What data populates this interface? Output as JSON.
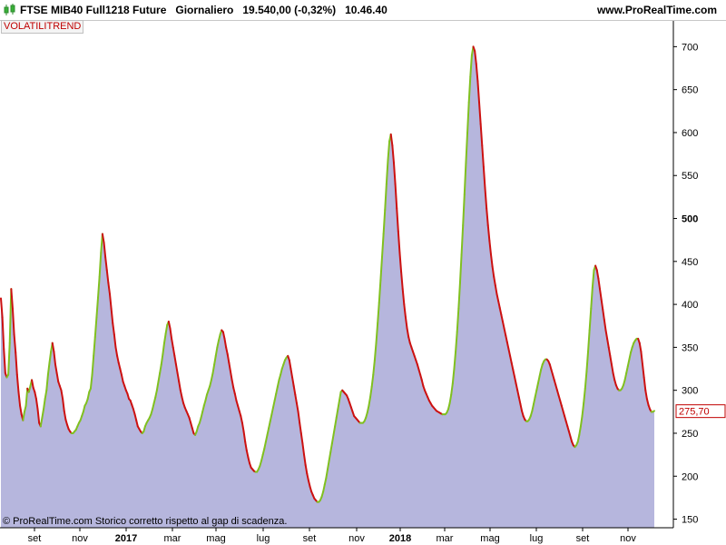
{
  "header": {
    "title": "FTSE MIB40 Full1218 Future   Giornaliero   19.540,00 (-0,32%)   10.46.40",
    "site": "www.ProRealTime.com"
  },
  "indicator_label": "VOLATILITREND",
  "copyright": "© ProRealTime.com  Storico corretto rispetto al gap di scadenza.",
  "last_value_label": "275,70",
  "colors": {
    "fill": "#b6b6dd",
    "up": "#80c020",
    "down": "#cc1111",
    "axis": "#000000",
    "last_value": "#c00000"
  },
  "chart_data": {
    "type": "area",
    "title": "",
    "ylim": [
      140,
      730
    ],
    "y_ticks": [
      150,
      200,
      250,
      300,
      350,
      400,
      450,
      500,
      550,
      600,
      650,
      700
    ],
    "y_tick_labels": [
      "150",
      "200",
      "250",
      "300",
      "350",
      "400",
      "450",
      "500",
      "550",
      "600",
      "650",
      "700"
    ],
    "x_labels": [
      "set",
      "nov",
      "2017",
      "mar",
      "mag",
      "lug",
      "set",
      "nov",
      "2018",
      "mar",
      "mag",
      "lug",
      "set",
      "nov"
    ],
    "bold_x_labels": [
      "2017",
      "2018"
    ],
    "bold_y_labels": [
      "500"
    ],
    "last_value": 275.7,
    "values": [
      407,
      385,
      348,
      320,
      315,
      318,
      355,
      418,
      395,
      365,
      344,
      318,
      298,
      282,
      272,
      265,
      275,
      282,
      302,
      298,
      305,
      312,
      303,
      298,
      290,
      278,
      262,
      258,
      268,
      278,
      290,
      300,
      318,
      332,
      345,
      355,
      345,
      330,
      320,
      310,
      305,
      300,
      290,
      276,
      266,
      260,
      255,
      252,
      250,
      250,
      252,
      254,
      258,
      262,
      265,
      270,
      275,
      282,
      285,
      290,
      298,
      302,
      318,
      340,
      362,
      385,
      408,
      432,
      460,
      482,
      472,
      455,
      440,
      425,
      412,
      395,
      378,
      365,
      350,
      340,
      332,
      325,
      318,
      310,
      305,
      300,
      296,
      290,
      288,
      283,
      278,
      272,
      265,
      258,
      255,
      252,
      250,
      252,
      258,
      262,
      265,
      268,
      272,
      278,
      285,
      292,
      300,
      310,
      320,
      330,
      342,
      355,
      366,
      376,
      380,
      372,
      360,
      350,
      340,
      330,
      320,
      310,
      300,
      292,
      285,
      280,
      276,
      272,
      268,
      262,
      256,
      250,
      248,
      252,
      258,
      262,
      268,
      275,
      282,
      288,
      295,
      300,
      305,
      312,
      320,
      330,
      340,
      350,
      358,
      365,
      370,
      368,
      360,
      350,
      342,
      332,
      322,
      312,
      303,
      296,
      288,
      282,
      276,
      270,
      262,
      252,
      240,
      230,
      222,
      215,
      210,
      208,
      206,
      205,
      205,
      208,
      212,
      218,
      225,
      232,
      240,
      248,
      256,
      264,
      272,
      280,
      288,
      296,
      304,
      312,
      318,
      325,
      330,
      335,
      338,
      340,
      335,
      325,
      315,
      305,
      295,
      285,
      275,
      262,
      250,
      238,
      225,
      213,
      203,
      195,
      188,
      182,
      178,
      174,
      172,
      170,
      170,
      172,
      176,
      182,
      190,
      198,
      208,
      218,
      228,
      238,
      248,
      258,
      268,
      278,
      288,
      298,
      300,
      298,
      296,
      294,
      290,
      285,
      280,
      275,
      270,
      268,
      266,
      264,
      262,
      262,
      262,
      264,
      268,
      274,
      282,
      292,
      304,
      318,
      335,
      355,
      378,
      402,
      428,
      455,
      482,
      510,
      540,
      568,
      590,
      598,
      585,
      565,
      540,
      512,
      485,
      460,
      438,
      418,
      400,
      385,
      372,
      362,
      355,
      350,
      345,
      340,
      335,
      330,
      324,
      318,
      312,
      305,
      300,
      296,
      292,
      288,
      285,
      282,
      280,
      278,
      276,
      275,
      274,
      273,
      272,
      272,
      272,
      274,
      278,
      285,
      295,
      308,
      325,
      345,
      368,
      395,
      425,
      458,
      492,
      528,
      565,
      600,
      635,
      665,
      690,
      700,
      695,
      680,
      660,
      635,
      610,
      585,
      560,
      535,
      512,
      492,
      474,
      458,
      444,
      432,
      422,
      412,
      404,
      396,
      388,
      380,
      372,
      364,
      356,
      348,
      340,
      332,
      324,
      316,
      308,
      300,
      292,
      284,
      276,
      270,
      266,
      264,
      264,
      266,
      270,
      276,
      284,
      292,
      300,
      308,
      316,
      324,
      330,
      334,
      336,
      336,
      334,
      330,
      324,
      318,
      312,
      306,
      300,
      294,
      288,
      282,
      276,
      270,
      264,
      258,
      252,
      246,
      240,
      236,
      234,
      236,
      240,
      248,
      258,
      270,
      285,
      302,
      322,
      345,
      370,
      395,
      420,
      440,
      445,
      440,
      430,
      418,
      406,
      394,
      382,
      370,
      360,
      350,
      340,
      330,
      320,
      312,
      306,
      302,
      300,
      300,
      302,
      306,
      312,
      320,
      328,
      336,
      344,
      350,
      355,
      358,
      360,
      360,
      355,
      345,
      330,
      315,
      300,
      290,
      283,
      278,
      275,
      275,
      276
    ]
  }
}
